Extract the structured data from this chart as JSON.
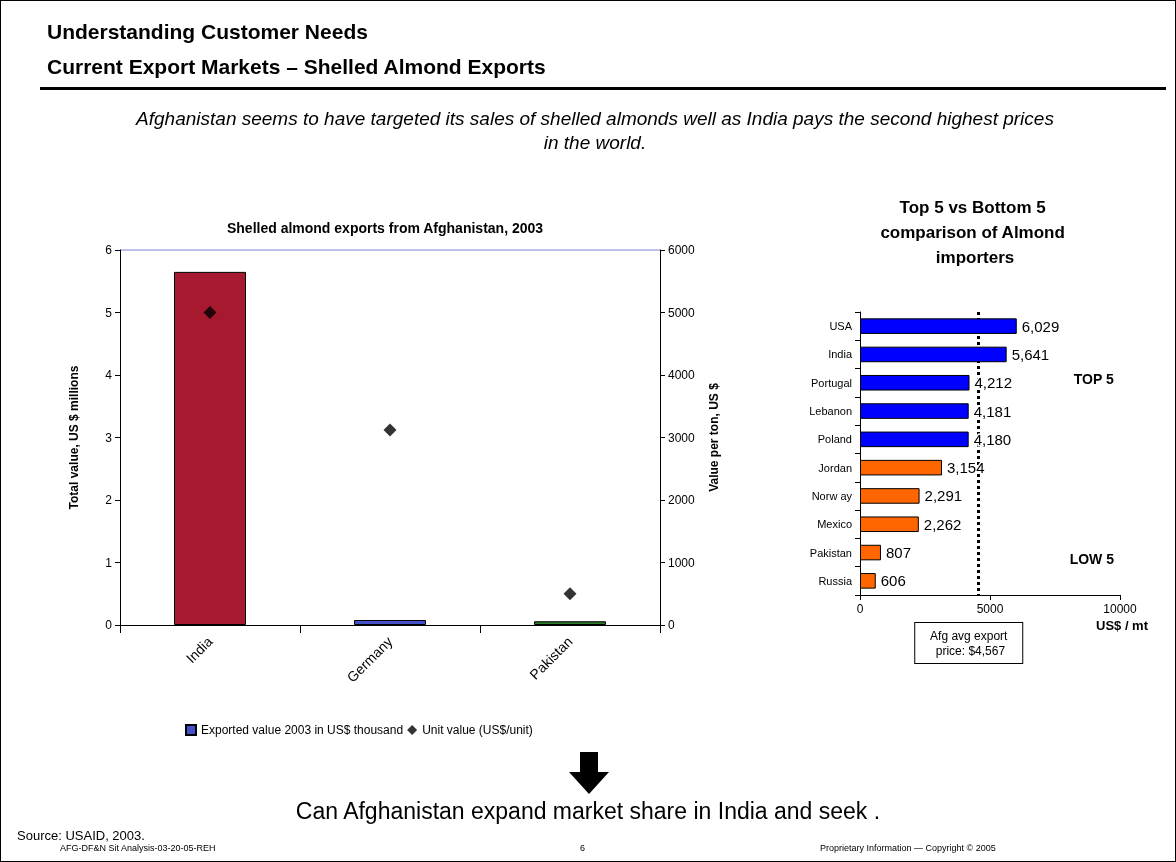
{
  "chart_data": [
    {
      "type": "other",
      "title": "Understanding Customer Needs",
      "subtitle": "Current Export Markets – Shelled Almond Exports",
      "annotations": [
        "Afghanistan seems to have targeted its sales of shelled almonds well as India pays the second  highest prices in the world.",
        "Can Afghanistan expand market share in India and seek .",
        "Source:  USAID, 2003.",
        "AFG-DF&N Sit Analysis-03-20-05-REH",
        "6",
        "Proprietary Information — Copyright © 2005"
      ]
    },
    {
      "type": "bar",
      "title": "Shelled almond exports from Afghanistan, 2003",
      "categories": [
        "India",
        "Germany",
        "Pakistan"
      ],
      "series": [
        {
          "name": "Exported value 2003 in US$ thousand",
          "type": "bar",
          "color": "#4450c8",
          "colors": [
            "#a6192e",
            "#4450c8",
            "#2a7a2a"
          ],
          "values": [
            5.65,
            0.08,
            0.06
          ]
        },
        {
          "name": "Unit value (US$/unit)",
          "type": "scatter",
          "axis": "y2",
          "color": "#000000",
          "marker": "diamond",
          "values": [
            5000,
            3120,
            500
          ]
        }
      ],
      "ylabel": "Total value, US $ millions",
      "y2label": "Value per ton, US $",
      "ylim": [
        0,
        6
      ],
      "yticks": [
        0,
        1,
        2,
        3,
        4,
        5,
        6
      ],
      "y2lim": [
        0,
        6000
      ],
      "y2ticks": [
        0,
        1000,
        2000,
        3000,
        4000,
        5000,
        6000
      ],
      "legend": "bottom"
    },
    {
      "type": "bar",
      "orientation": "horizontal",
      "title": "Top 5 vs Bottom 5 comparison of Almond importers",
      "categories": [
        "USA",
        "India",
        "Portugal",
        "Lebanon",
        "Poland",
        "Jordan",
        "Norw ay",
        "Mexico",
        "Pakistan",
        "Russia"
      ],
      "values": [
        6029,
        5641,
        4212,
        4181,
        4180,
        3154,
        2291,
        2262,
        807,
        606
      ],
      "colors": [
        "#0000ff",
        "#0000ff",
        "#0000ff",
        "#0000ff",
        "#0000ff",
        "#ff6600",
        "#ff6600",
        "#ff6600",
        "#ff6600",
        "#ff6600"
      ],
      "value_labels": [
        "6,029",
        "5,641",
        "4,212",
        "4,181",
        "4,180",
        "3,154",
        "2,291",
        "2,262",
        "807",
        "606"
      ],
      "xlim": [
        0,
        10000
      ],
      "xticks": [
        0,
        5000,
        10000
      ],
      "xlabel": "US$ / mt",
      "ref_lines": [
        {
          "axis": "x",
          "value": 4567,
          "label": "Afg avg export price: $4,567",
          "line_style": "dotted",
          "color": "#000000"
        }
      ],
      "annotations": [
        "TOP 5",
        "LOW 5"
      ]
    }
  ]
}
